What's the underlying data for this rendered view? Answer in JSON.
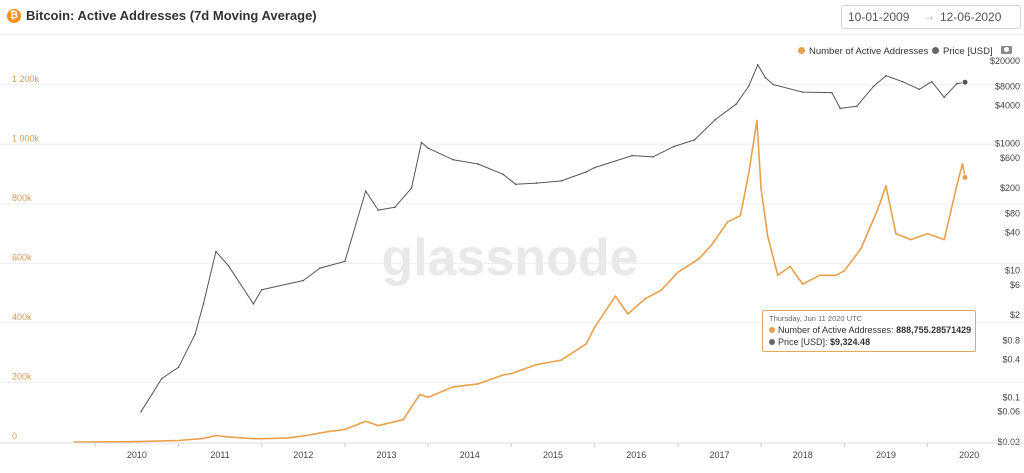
{
  "header": {
    "title": "Bitcoin: Active Addresses (7d Moving Average)",
    "date_start": "10-01-2009",
    "date_arrow": "→",
    "date_end": "12-06-2020"
  },
  "legend": {
    "series1": "Number of Active Addresses",
    "series2": "Price [USD]"
  },
  "watermark": "glassnode",
  "tooltip": {
    "date": "Thursday, Jun 11 2020 UTC",
    "row1_label": "Number of Active Addresses:",
    "row1_value": "888,755.28571429",
    "row2_label": "Price [USD]:",
    "row2_value": "$9,324.48"
  },
  "colors": {
    "addresses": "#e8a04c",
    "price": "#555555",
    "axis_left": "#d49a55",
    "grid": "#eeeeee"
  },
  "icons": [
    "bitcoin-icon",
    "camera-icon"
  ],
  "chart_data": {
    "type": "line",
    "title": "Bitcoin: Active Addresses (7d Moving Average)",
    "x_ticks": [
      "2010",
      "2011",
      "2012",
      "2013",
      "2014",
      "2015",
      "2016",
      "2017",
      "2018",
      "2019",
      "2020"
    ],
    "y_left_ticks": [
      "0",
      "200k",
      "400k",
      "600k",
      "800k",
      "1 000k",
      "1 200k"
    ],
    "y_left_range": [
      0,
      1300000
    ],
    "y_right_ticks": [
      "$0.02",
      "$0.06",
      "$0.1",
      "$0.4",
      "$0.8",
      "$2",
      "$6",
      "$10",
      "$40",
      "$80",
      "$200",
      "$600",
      "$1000",
      "$4000",
      "$8000",
      "$20000"
    ],
    "y_right_scale": "log",
    "y_right_range": [
      0.02,
      25000
    ],
    "series": [
      {
        "name": "Number of Active Addresses",
        "axis": "left",
        "points": [
          [
            2009.75,
            0
          ],
          [
            2010.0,
            300
          ],
          [
            2010.5,
            1500
          ],
          [
            2011.0,
            5000
          ],
          [
            2011.3,
            12000
          ],
          [
            2011.45,
            22000
          ],
          [
            2011.6,
            17000
          ],
          [
            2011.9,
            11000
          ],
          [
            2012.0,
            11000
          ],
          [
            2012.3,
            13000
          ],
          [
            2012.5,
            20000
          ],
          [
            2012.8,
            35000
          ],
          [
            2013.0,
            42000
          ],
          [
            2013.25,
            70000
          ],
          [
            2013.4,
            55000
          ],
          [
            2013.7,
            75000
          ],
          [
            2013.9,
            160000
          ],
          [
            2014.0,
            150000
          ],
          [
            2014.3,
            185000
          ],
          [
            2014.6,
            195000
          ],
          [
            2014.9,
            225000
          ],
          [
            2015.0,
            230000
          ],
          [
            2015.3,
            260000
          ],
          [
            2015.6,
            275000
          ],
          [
            2015.9,
            330000
          ],
          [
            2016.0,
            385000
          ],
          [
            2016.25,
            490000
          ],
          [
            2016.4,
            430000
          ],
          [
            2016.6,
            480000
          ],
          [
            2016.8,
            510000
          ],
          [
            2017.0,
            570000
          ],
          [
            2017.25,
            615000
          ],
          [
            2017.4,
            660000
          ],
          [
            2017.6,
            740000
          ],
          [
            2017.75,
            760000
          ],
          [
            2017.85,
            900000
          ],
          [
            2017.95,
            1080000
          ],
          [
            2018.0,
            850000
          ],
          [
            2018.08,
            690000
          ],
          [
            2018.2,
            560000
          ],
          [
            2018.35,
            590000
          ],
          [
            2018.5,
            530000
          ],
          [
            2018.7,
            560000
          ],
          [
            2018.9,
            560000
          ],
          [
            2019.0,
            575000
          ],
          [
            2019.2,
            650000
          ],
          [
            2019.4,
            780000
          ],
          [
            2019.5,
            860000
          ],
          [
            2019.62,
            700000
          ],
          [
            2019.8,
            680000
          ],
          [
            2020.0,
            700000
          ],
          [
            2020.2,
            680000
          ],
          [
            2020.35,
            860000
          ],
          [
            2020.42,
            935000
          ],
          [
            2020.45,
            888755
          ]
        ]
      },
      {
        "name": "Price [USD]",
        "axis": "right",
        "points": [
          [
            2010.55,
            0.06
          ],
          [
            2010.8,
            0.2
          ],
          [
            2011.0,
            0.3
          ],
          [
            2011.2,
            1.0
          ],
          [
            2011.3,
            3.0
          ],
          [
            2011.45,
            20
          ],
          [
            2011.6,
            12
          ],
          [
            2011.9,
            3.0
          ],
          [
            2012.0,
            5.0
          ],
          [
            2012.5,
            7.0
          ],
          [
            2012.7,
            11
          ],
          [
            2013.0,
            14
          ],
          [
            2013.25,
            180
          ],
          [
            2013.4,
            90
          ],
          [
            2013.6,
            100
          ],
          [
            2013.8,
            200
          ],
          [
            2013.92,
            1050
          ],
          [
            2014.0,
            850
          ],
          [
            2014.3,
            560
          ],
          [
            2014.6,
            480
          ],
          [
            2014.9,
            330
          ],
          [
            2015.05,
            230
          ],
          [
            2015.3,
            240
          ],
          [
            2015.6,
            260
          ],
          [
            2015.9,
            360
          ],
          [
            2016.0,
            420
          ],
          [
            2016.45,
            650
          ],
          [
            2016.7,
            620
          ],
          [
            2016.95,
            900
          ],
          [
            2017.2,
            1150
          ],
          [
            2017.45,
            2400
          ],
          [
            2017.7,
            4200
          ],
          [
            2017.85,
            8000
          ],
          [
            2017.96,
            17500
          ],
          [
            2018.05,
            11000
          ],
          [
            2018.15,
            8500
          ],
          [
            2018.5,
            6500
          ],
          [
            2018.85,
            6400
          ],
          [
            2018.95,
            3600
          ],
          [
            2019.15,
            3900
          ],
          [
            2019.35,
            8000
          ],
          [
            2019.5,
            11800
          ],
          [
            2019.7,
            9500
          ],
          [
            2019.9,
            7200
          ],
          [
            2020.05,
            9500
          ],
          [
            2020.2,
            5400
          ],
          [
            2020.35,
            8800
          ],
          [
            2020.45,
            9324
          ]
        ]
      }
    ]
  }
}
